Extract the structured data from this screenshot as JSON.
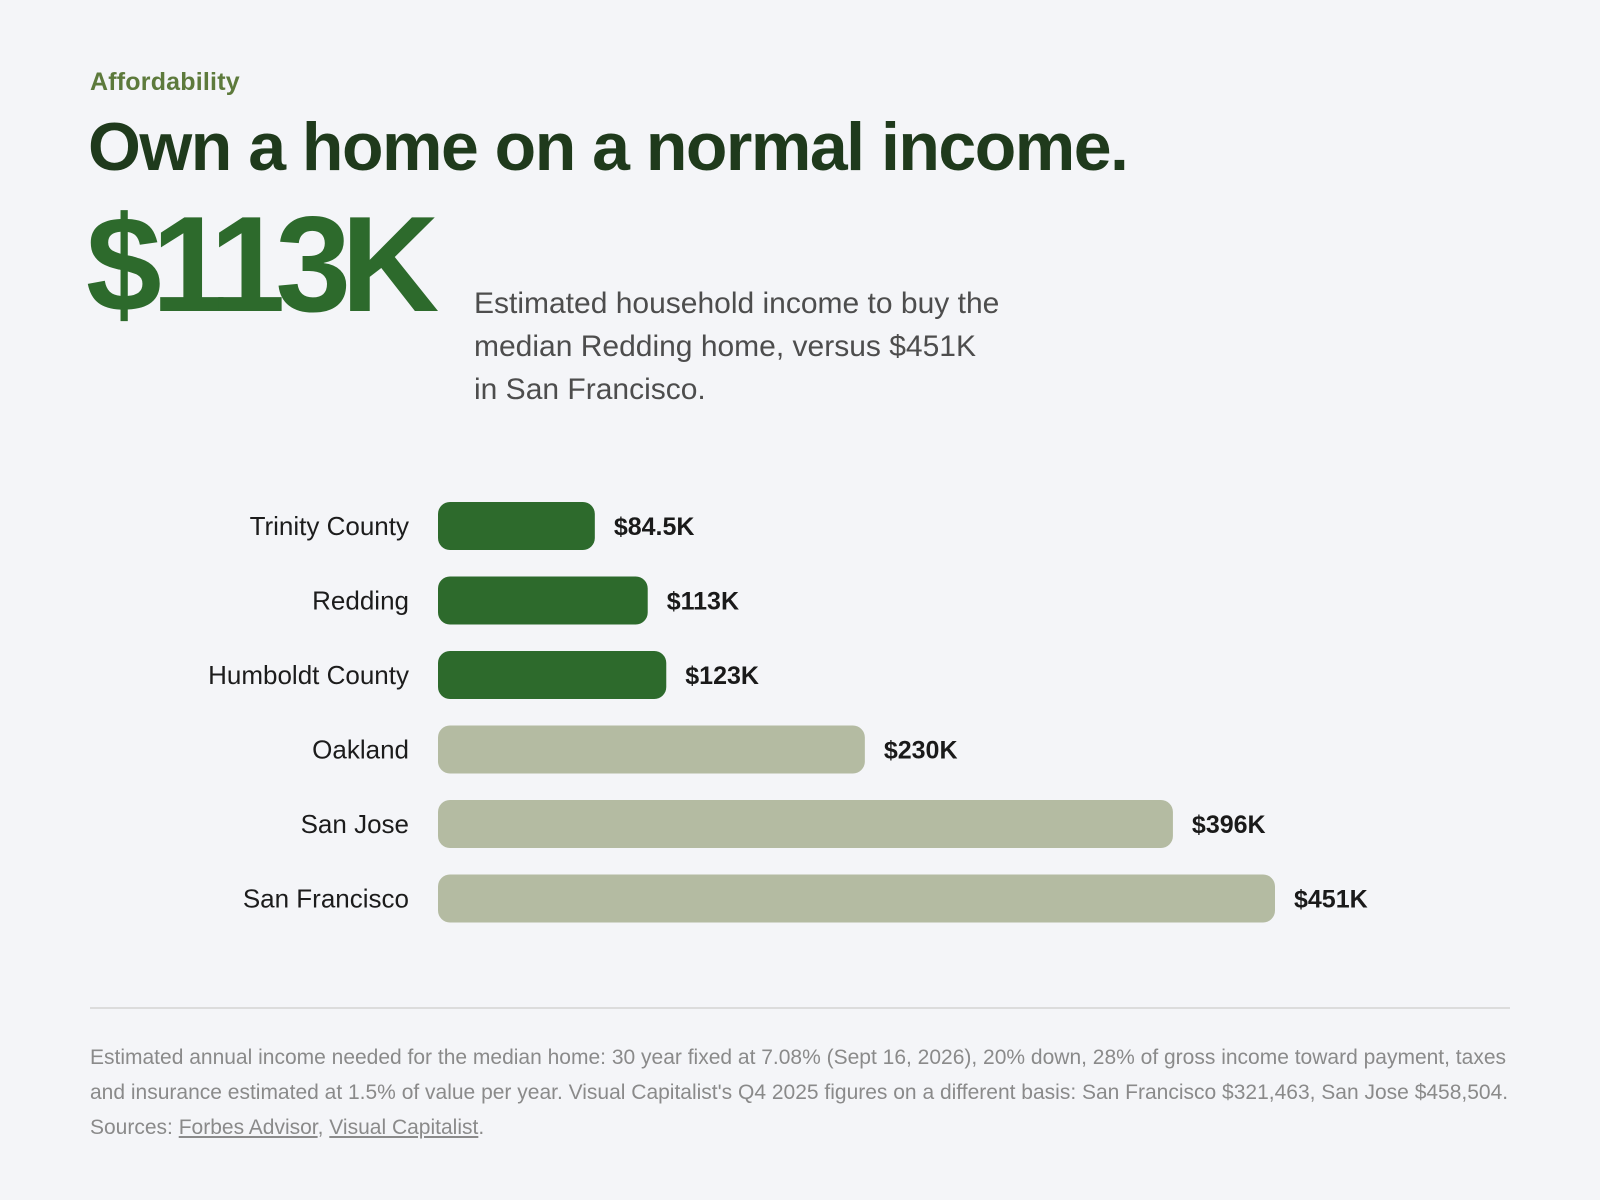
{
  "header": {
    "eyebrow": "Affordability",
    "title": "Own a home on a normal income."
  },
  "stat": {
    "value": "$113K",
    "caption": "Estimated household income to buy the median Redding home, versus $451K in San Francisco."
  },
  "colors": {
    "highlight": "#2d6a2c",
    "muted": "#b4bba2"
  },
  "chart_data": {
    "type": "bar",
    "orientation": "horizontal",
    "categories": [
      "Trinity County",
      "Redding",
      "Humboldt County",
      "Oakland",
      "San Jose",
      "San Francisco"
    ],
    "values": [
      84.5,
      113,
      123,
      230,
      396,
      451
    ],
    "value_labels": [
      "$84.5K",
      "$113K",
      "$123K",
      "$230K",
      "$396K",
      "$451K"
    ],
    "highlighted": [
      true,
      true,
      true,
      false,
      false,
      false
    ],
    "unit": "$K",
    "xlim": [
      0,
      451
    ],
    "grid": false
  },
  "footnote": {
    "text_1": "Estimated annual income needed for the median home: 30 year fixed at 7.08% (Sept 16, 2026), 20% down, 28% of gross income toward payment, taxes and insurance estimated at 1.5% of value per year. Visual Capitalist's Q4 2025 figures on a different basis: San Francisco $321,463, San Jose $458,504. Sources: ",
    "link_1": "Forbes Advisor",
    "separator": ", ",
    "link_2": "Visual Capitalist",
    "end": "."
  }
}
